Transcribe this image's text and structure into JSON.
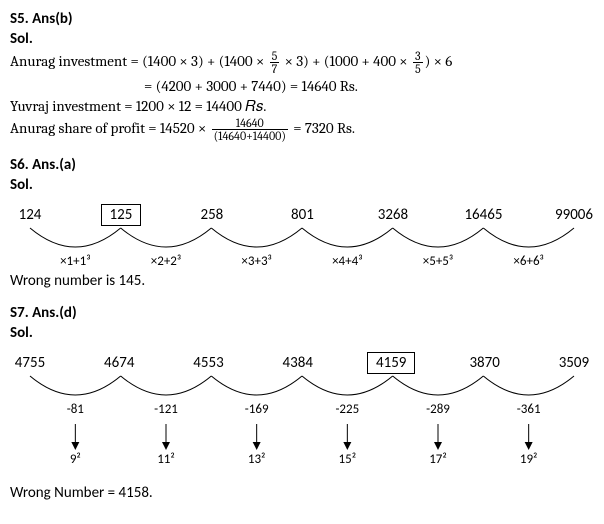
{
  "s5": {
    "title": "S5. Ans(b)",
    "sol": "Sol.",
    "l1a": "Anurag investment = (1400 × 3) + ",
    "l1b": "1400  ×",
    "l1c": "× 3",
    "l1d": " + ",
    "l1e": "1000 + 400  ×",
    "l1f": " × 6",
    "frac1_num": "5",
    "frac1_den": "7",
    "frac2_num": "3",
    "frac2_den": "5",
    "l2": "= (4200 + 3000 + 7440) = 14640 Rs.",
    "l3": "Yuvraj investment = 1200 × 12 = 14400 𝑅𝑠.",
    "l4a": "Anurag share of profit = 14520 × ",
    "l4b": " = 7320 Rs.",
    "frac3_num": "14640",
    "frac3_den": "(14640+14400)"
  },
  "s6": {
    "title": "S6. Ans.(a)",
    "sol": "Sol.",
    "nums": [
      "124",
      "125",
      "258",
      "801",
      "3268",
      "16465",
      "99006"
    ],
    "ops": [
      "×1+1³",
      "×2+2³",
      "×3+3³",
      "×4+4³",
      "×5+5³",
      "×6+6³"
    ],
    "wrong": "Wrong number is 145.",
    "boxed_index": 1,
    "arc_color": "#000"
  },
  "s7": {
    "title": "S7. Ans.(d)",
    "sol": "Sol.",
    "nums": [
      "4755",
      "4674",
      "4553",
      "4384",
      "4159",
      "3870",
      "3509"
    ],
    "diffs": [
      "-81",
      "-121",
      "-169",
      "-225",
      "-289",
      "-361"
    ],
    "squares": [
      "9²",
      "11²",
      "13²",
      "15²",
      "17²",
      "19²"
    ],
    "wrong": "Wrong Number = 4158.",
    "boxed_index": 4,
    "arc_color": "#000"
  }
}
